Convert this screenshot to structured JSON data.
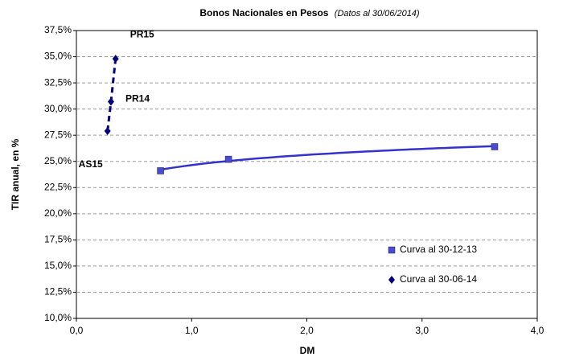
{
  "chart_data": {
    "type": "scatter",
    "title": "Bonos Nacionales en Pesos",
    "subtitle": "(Datos al 30/06/2014)",
    "x_label": "DM",
    "y_label": "TIR anual, en %",
    "xlim": [
      0,
      4
    ],
    "ylim": [
      10,
      37.5
    ],
    "xticks": [
      {
        "value": 0,
        "label": "0,0"
      },
      {
        "value": 1,
        "label": "1,0"
      },
      {
        "value": 2,
        "label": "2,0"
      },
      {
        "value": 3,
        "label": "3,0"
      },
      {
        "value": 4,
        "label": "4,0"
      }
    ],
    "yticks": [
      {
        "value": 10,
        "label": "10,0%"
      },
      {
        "value": 12.5,
        "label": "12,5%"
      },
      {
        "value": 15,
        "label": "15,0%"
      },
      {
        "value": 17.5,
        "label": "17,5%"
      },
      {
        "value": 20,
        "label": "20,0%"
      },
      {
        "value": 22.5,
        "label": "22,5%"
      },
      {
        "value": 25,
        "label": "25,0%"
      },
      {
        "value": 27.5,
        "label": "27,5%"
      },
      {
        "value": 30,
        "label": "30,0%"
      },
      {
        "value": 32.5,
        "label": "32,5%"
      },
      {
        "value": 35,
        "label": "35,0%"
      },
      {
        "value": 37.5,
        "label": "37,5%"
      }
    ],
    "grid": true,
    "legend": "lower right",
    "series": [
      {
        "name": "Curva al 30-12-13",
        "color": "#4a4ad8",
        "marker": "square",
        "x": [
          0.73,
          1.32,
          3.63
        ],
        "values": [
          24.1,
          25.2,
          26.4
        ]
      },
      {
        "name": "Curva al 30-06-14",
        "color": "#000080",
        "marker": "diamond",
        "x": [
          0.27,
          0.3,
          0.34
        ],
        "values": [
          27.9,
          30.7,
          34.8
        ],
        "labels": [
          "AS15",
          "PR14",
          "PR15"
        ]
      }
    ]
  }
}
